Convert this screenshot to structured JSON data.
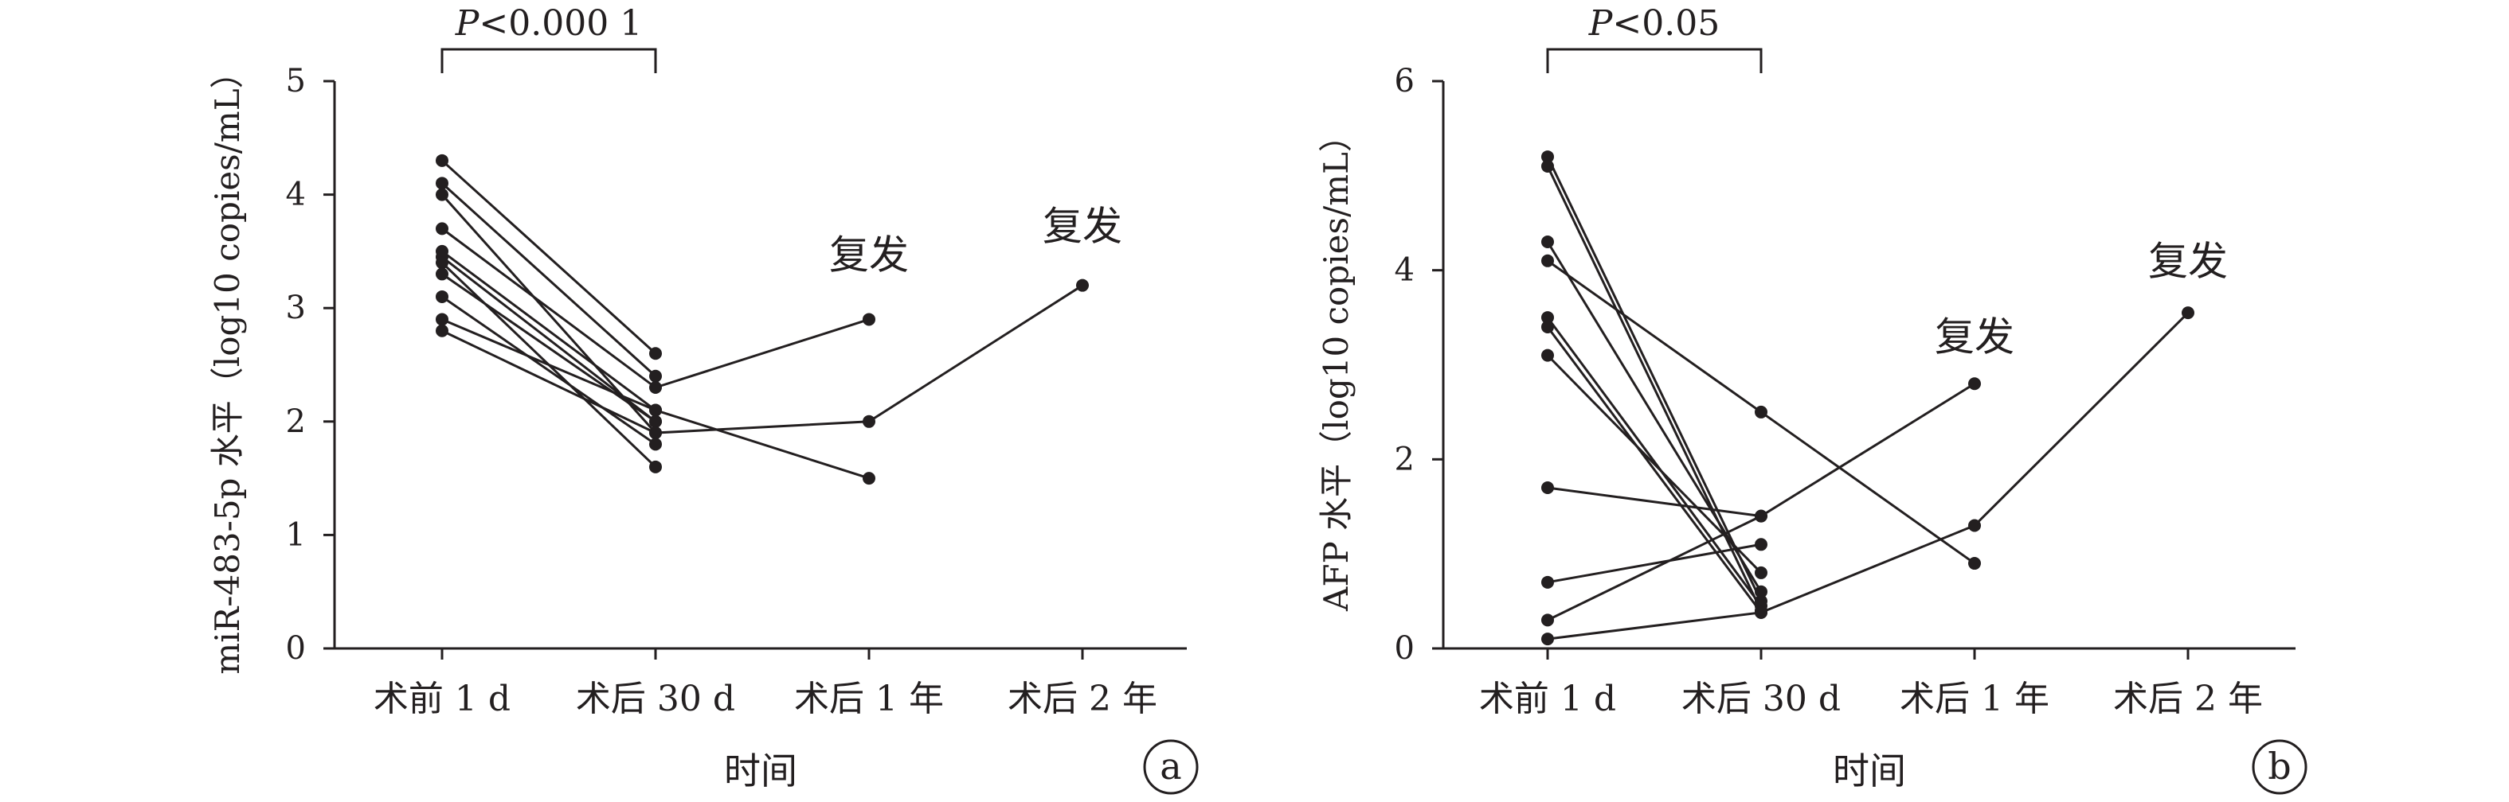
{
  "colors": {
    "ink": "#231f20",
    "background": "#ffffff"
  },
  "chart_data": [
    {
      "type": "line",
      "panel_label": "a",
      "ylabel": "miR-483-5p 水平（log10 copies/mL）",
      "xlabel": "时间",
      "categories": [
        "术前 1 d",
        "术后 30 d",
        "术后 1 年",
        "术后 2 年"
      ],
      "ylim": [
        0,
        5
      ],
      "yticks": [
        0,
        1,
        2,
        3,
        4,
        5
      ],
      "grid": false,
      "significance": {
        "text_italic": "P",
        "text_rest": "<0.000 1",
        "from": 0,
        "to": 1
      },
      "recurrence_label": "复发",
      "series": [
        {
          "values": [
            4.3,
            2.6,
            null,
            null
          ]
        },
        {
          "values": [
            4.1,
            2.4,
            null,
            null
          ]
        },
        {
          "values": [
            4.0,
            1.9,
            null,
            null
          ]
        },
        {
          "values": [
            3.7,
            2.3,
            2.9,
            null
          ]
        },
        {
          "values": [
            3.5,
            2.1,
            null,
            null
          ]
        },
        {
          "values": [
            3.45,
            2.0,
            null,
            null
          ]
        },
        {
          "values": [
            3.4,
            1.6,
            null,
            null
          ]
        },
        {
          "values": [
            3.3,
            2.0,
            null,
            null
          ]
        },
        {
          "values": [
            3.1,
            1.8,
            null,
            null
          ]
        },
        {
          "values": [
            2.9,
            2.1,
            1.5,
            null
          ]
        },
        {
          "values": [
            2.8,
            1.9,
            2.0,
            3.2
          ]
        }
      ],
      "annotations": [
        {
          "text": "复发",
          "x": 2,
          "y": 3.35
        },
        {
          "text": "复发",
          "x": 3,
          "y": 3.6
        }
      ]
    },
    {
      "type": "line",
      "panel_label": "b",
      "ylabel": "AFP 水平（log10 copies/mL）",
      "xlabel": "时间",
      "categories": [
        "术前 1 d",
        "术后 30 d",
        "术后 1 年",
        "术后 2 年"
      ],
      "ylim": [
        0,
        6
      ],
      "yticks": [
        0,
        2,
        4,
        6
      ],
      "grid": false,
      "significance": {
        "text_italic": "P",
        "text_rest": "<0.05",
        "from": 0,
        "to": 1
      },
      "recurrence_label": "复发",
      "series": [
        {
          "values": [
            5.2,
            0.5,
            null,
            null
          ]
        },
        {
          "values": [
            5.1,
            0.4,
            null,
            null
          ]
        },
        {
          "values": [
            4.3,
            0.6,
            null,
            null
          ]
        },
        {
          "values": [
            4.1,
            2.5,
            0.9,
            null
          ]
        },
        {
          "values": [
            3.5,
            0.45,
            null,
            null
          ]
        },
        {
          "values": [
            3.4,
            0.38,
            null,
            null
          ]
        },
        {
          "values": [
            3.1,
            0.8,
            null,
            null
          ]
        },
        {
          "values": [
            1.7,
            1.4,
            null,
            null
          ]
        },
        {
          "values": [
            0.7,
            1.1,
            null,
            null
          ]
        },
        {
          "values": [
            0.3,
            1.4,
            2.8,
            null
          ]
        },
        {
          "values": [
            0.1,
            0.38,
            1.3,
            3.55
          ]
        }
      ],
      "annotations": [
        {
          "text": "复发",
          "x": 2,
          "y": 3.15
        },
        {
          "text": "复发",
          "x": 3,
          "y": 3.95
        }
      ]
    }
  ]
}
